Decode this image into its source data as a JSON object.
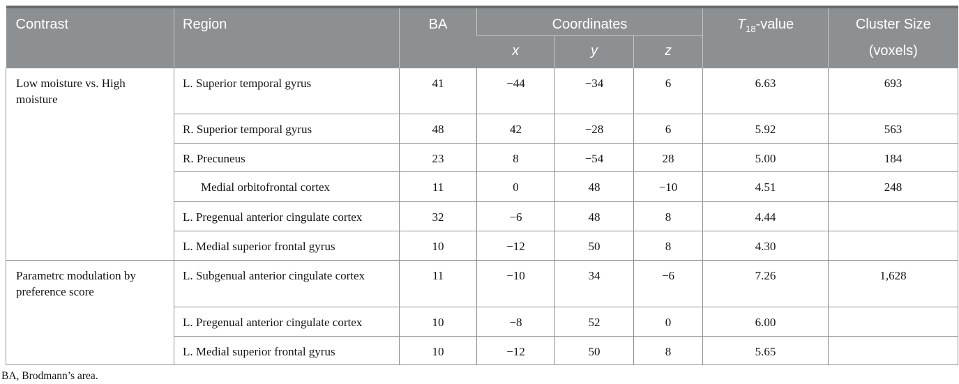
{
  "table": {
    "header": {
      "contrast": "Contrast",
      "region": "Region",
      "ba": "BA",
      "coordinates": "Coordinates",
      "coord_x": "x",
      "coord_y": "y",
      "coord_z": "z",
      "t_italic": "T",
      "t_sub": "18",
      "t_suffix": "-value",
      "cluster_line1": "Cluster Size",
      "cluster_line2": "(voxels)"
    },
    "groups": [
      {
        "contrast": "Low moisture vs. High moisture",
        "rows": [
          {
            "region": "L. Superior temporal gyrus",
            "ba": "41",
            "x": "−44",
            "y": "−34",
            "z": "6",
            "t": "6.63",
            "cluster": "693",
            "indent": false,
            "wrap": false
          },
          {
            "region": "R. Superior temporal gyrus",
            "ba": "48",
            "x": "42",
            "y": "−28",
            "z": "6",
            "t": "5.92",
            "cluster": "563",
            "indent": false,
            "wrap": false
          },
          {
            "region": "R. Precuneus",
            "ba": "23",
            "x": "8",
            "y": "−54",
            "z": "28",
            "t": "5.00",
            "cluster": "184",
            "indent": false,
            "wrap": false
          },
          {
            "region": "Medial orbitofrontal cortex",
            "ba": "11",
            "x": "0",
            "y": "48",
            "z": "−10",
            "t": "4.51",
            "cluster": "248",
            "indent": true,
            "wrap": false
          },
          {
            "region": "L. Pregenual anterior cingulate cortex",
            "ba": "32",
            "x": "−6",
            "y": "48",
            "z": "8",
            "t": "4.44",
            "cluster": "",
            "indent": false,
            "wrap": false
          },
          {
            "region": "L. Medial superior frontal gyrus",
            "ba": "10",
            "x": "−12",
            "y": "50",
            "z": "8",
            "t": "4.30",
            "cluster": "",
            "indent": false,
            "wrap": false
          }
        ]
      },
      {
        "contrast": "Parametrc modulation by preference score",
        "rows": [
          {
            "region": "L. Subgenual anterior cingulate cortex",
            "ba": "11",
            "x": "−10",
            "y": "34",
            "z": "−6",
            "t": "7.26",
            "cluster": "1,628",
            "indent": false,
            "wrap": true
          },
          {
            "region": "L. Pregenual anterior cingulate cortex",
            "ba": "10",
            "x": "−8",
            "y": "52",
            "z": "0",
            "t": "6.00",
            "cluster": "",
            "indent": false,
            "wrap": false
          },
          {
            "region": "L. Medial superior frontal gyrus",
            "ba": "10",
            "x": "−12",
            "y": "50",
            "z": "8",
            "t": "5.65",
            "cluster": "",
            "indent": false,
            "wrap": false
          }
        ]
      }
    ],
    "footnote": "BA, Brodmann’s area."
  },
  "colors": {
    "header_bg": "#8d9092",
    "header_top_border": "#66696c",
    "header_divider": "#c2c5c6",
    "header_text": "#ffffff",
    "body_grid": "#919191",
    "body_text": "#141414",
    "page_bg": "#ffffff"
  }
}
